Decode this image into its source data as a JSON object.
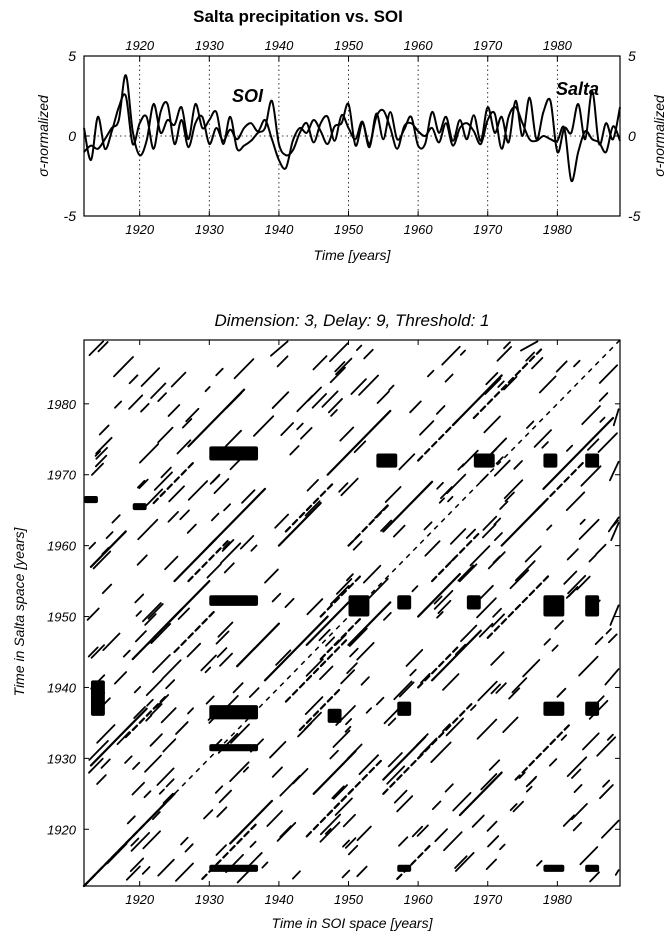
{
  "chart_data": [
    {
      "type": "line",
      "title": "Salta precipitation vs. SOI",
      "xlabel": "Time [years]",
      "ylabel_left": "σ-normalized",
      "ylabel_right": "σ-normalized",
      "xlim": [
        1912,
        1989
      ],
      "ylim": [
        -5,
        5
      ],
      "x_ticks": [
        1920,
        1930,
        1940,
        1950,
        1960,
        1970,
        1980
      ],
      "y_ticks": [
        -5,
        0,
        5
      ],
      "grid": "vertical dotted at ticks",
      "annotations": [
        {
          "text": "SOI",
          "x": 1934,
          "y": 2.6
        },
        {
          "text": "Salta",
          "x": 1985,
          "y": 3.0
        }
      ],
      "series": [
        {
          "name": "SOI",
          "x": [
            1912,
            1913,
            1914,
            1915,
            1916,
            1917,
            1918,
            1919,
            1920,
            1921,
            1922,
            1923,
            1924,
            1925,
            1926,
            1927,
            1928,
            1929,
            1930,
            1931,
            1932,
            1933,
            1934,
            1935,
            1936,
            1937,
            1938,
            1939,
            1940,
            1941,
            1942,
            1943,
            1944,
            1945,
            1946,
            1947,
            1948,
            1949,
            1950,
            1951,
            1952,
            1953,
            1954,
            1955,
            1956,
            1957,
            1958,
            1959,
            1960,
            1961,
            1962,
            1963,
            1964,
            1965,
            1966,
            1967,
            1968,
            1969,
            1970,
            1971,
            1972,
            1973,
            1974,
            1975,
            1976,
            1977,
            1978,
            1979,
            1980,
            1981,
            1982,
            1983,
            1984,
            1985,
            1986,
            1987,
            1988,
            1989
          ],
          "values": [
            0.5,
            -1.5,
            1.2,
            -0.8,
            0.3,
            1.8,
            2.5,
            -0.5,
            0.8,
            1.2,
            -0.8,
            1.5,
            2.0,
            -0.5,
            1.0,
            -0.7,
            0.8,
            1.2,
            -0.5,
            0.5,
            -0.3,
            0.4,
            -0.2,
            0.5,
            0.8,
            0.3,
            1.0,
            -0.2,
            -1.5,
            -2.0,
            -0.3,
            0.5,
            0.2,
            1.0,
            0.3,
            -0.5,
            0.6,
            0.8,
            2.0,
            -0.6,
            0.8,
            -0.5,
            1.2,
            1.6,
            0.5,
            -0.8,
            0.6,
            0.8,
            0.3,
            0.0,
            0.5,
            -0.4,
            0.8,
            -0.6,
            0.5,
            0.8,
            0.3,
            -0.5,
            1.0,
            1.4,
            -0.8,
            1.2,
            1.8,
            0.8,
            -0.2,
            -0.3,
            0.0,
            -0.2,
            -0.3,
            0.5,
            -2.8,
            -1.0,
            0.3,
            -0.2,
            -0.4,
            -1.0,
            0.6,
            -0.3
          ]
        },
        {
          "name": "Salta",
          "x": [
            1912,
            1913,
            1914,
            1915,
            1916,
            1917,
            1918,
            1919,
            1920,
            1921,
            1922,
            1923,
            1924,
            1925,
            1926,
            1927,
            1928,
            1929,
            1930,
            1931,
            1932,
            1933,
            1934,
            1935,
            1936,
            1937,
            1938,
            1939,
            1940,
            1941,
            1942,
            1943,
            1944,
            1945,
            1946,
            1947,
            1948,
            1949,
            1950,
            1951,
            1952,
            1953,
            1954,
            1955,
            1956,
            1957,
            1958,
            1959,
            1960,
            1961,
            1962,
            1963,
            1964,
            1965,
            1966,
            1967,
            1968,
            1969,
            1970,
            1971,
            1972,
            1973,
            1974,
            1975,
            1976,
            1977,
            1978,
            1979,
            1980,
            1981,
            1982,
            1983,
            1984,
            1985,
            1986,
            1987,
            1988,
            1989
          ],
          "values": [
            -1.0,
            -0.6,
            -0.8,
            -0.2,
            0.5,
            1.0,
            3.8,
            0.3,
            -1.2,
            -0.3,
            2.0,
            0.2,
            1.0,
            0.7,
            1.8,
            -0.2,
            2.0,
            0.5,
            1.0,
            1.5,
            -0.5,
            1.2,
            -0.8,
            -0.6,
            -0.3,
            0.2,
            0.5,
            2.2,
            -0.5,
            -1.2,
            -0.9,
            0.2,
            0.8,
            -0.4,
            0.8,
            1.2,
            -0.3,
            1.3,
            0.5,
            -0.2,
            0.9,
            -0.7,
            1.4,
            -0.2,
            1.5,
            -0.2,
            0.4,
            1.2,
            -0.6,
            -0.5,
            1.5,
            0.2,
            1.2,
            -0.3,
            1.0,
            -0.2,
            1.3,
            -0.3,
            1.8,
            0.2,
            1.2,
            -0.4,
            2.2,
            0.0,
            2.4,
            -0.2,
            1.5,
            2.2,
            -1.0,
            0.5,
            0.2,
            2.0,
            -0.2,
            2.8,
            -0.5,
            0.8,
            -0.2,
            1.8
          ]
        }
      ]
    },
    {
      "type": "scatter",
      "title": "Dimension: 3, Delay: 9, Threshold: 1",
      "xlabel": "Time in SOI space [years]",
      "ylabel": "Time in Salta space [years]",
      "xlim": [
        1912,
        1989
      ],
      "ylim": [
        1912,
        1989
      ],
      "x_ticks": [
        1920,
        1930,
        1940,
        1950,
        1960,
        1970,
        1980
      ],
      "y_ticks": [
        1920,
        1930,
        1940,
        1950,
        1960,
        1970,
        1980
      ],
      "grid": "none",
      "description_points": {
        "diagonal_segments": [
          [
            1912,
            1912,
            1925,
            1925
          ],
          [
            1913,
            1929,
            1921,
            1937
          ],
          [
            1919,
            1944,
            1926,
            1951
          ],
          [
            1925,
            1955,
            1931,
            1961
          ],
          [
            1930,
            1960,
            1938,
            1968
          ],
          [
            1927,
            1974,
            1935,
            1982
          ],
          [
            1938,
            1941,
            1947,
            1950
          ],
          [
            1944,
            1946,
            1950,
            1952
          ],
          [
            1947,
            1970,
            1956,
            1979
          ],
          [
            1955,
            1962,
            1962,
            1969
          ],
          [
            1960,
            1950,
            1966,
            1956
          ],
          [
            1965,
            1977,
            1972,
            1984
          ],
          [
            1972,
            1960,
            1978,
            1966
          ],
          [
            1978,
            1968,
            1988,
            1978
          ],
          [
            1940,
            1960,
            1946,
            1966
          ],
          [
            1962,
            1941,
            1969,
            1948
          ],
          [
            1933,
            1918,
            1939,
            1924
          ],
          [
            1945,
            1925,
            1951,
            1931
          ],
          [
            1955,
            1927,
            1961,
            1933
          ],
          [
            1922,
            1947,
            1930,
            1955
          ],
          [
            1934,
            1943,
            1940,
            1949
          ],
          [
            1950,
            1946,
            1956,
            1952
          ],
          [
            1966,
            1922,
            1972,
            1928
          ],
          [
            1913,
            1957,
            1918,
            1962
          ]
        ],
        "dense_blocks": [
          [
            1930,
            1951.5,
            1937,
            1953
          ],
          [
            1930,
            1935.5,
            1937,
            1937.5
          ],
          [
            1930,
            1931,
            1937,
            1932
          ],
          [
            1919,
            1965,
            1921,
            1966
          ],
          [
            1947,
            1935,
            1949,
            1937
          ],
          [
            1950,
            1950,
            1953,
            1953
          ],
          [
            1957,
            1951,
            1959,
            1953
          ],
          [
            1957,
            1936,
            1959,
            1938
          ],
          [
            1967,
            1951,
            1969,
            1953
          ],
          [
            1978,
            1950,
            1981,
            1953
          ],
          [
            1984,
            1950,
            1986,
            1953
          ],
          [
            1978,
            1936,
            1981,
            1938
          ],
          [
            1984,
            1936,
            1986,
            1938
          ],
          [
            1912,
            1966,
            1914,
            1967
          ],
          [
            1930,
            1972,
            1937,
            1974
          ],
          [
            1954,
            1971,
            1957,
            1973
          ],
          [
            1968,
            1971,
            1971,
            1973
          ],
          [
            1978,
            1971,
            1980,
            1973
          ],
          [
            1984,
            1971,
            1986,
            1973
          ],
          [
            1978,
            1914,
            1981,
            1915
          ],
          [
            1984,
            1914,
            1986,
            1915
          ],
          [
            1957,
            1914,
            1959,
            1915
          ],
          [
            1930,
            1914,
            1937,
            1915
          ],
          [
            1913,
            1936,
            1915,
            1941
          ]
        ]
      }
    }
  ]
}
